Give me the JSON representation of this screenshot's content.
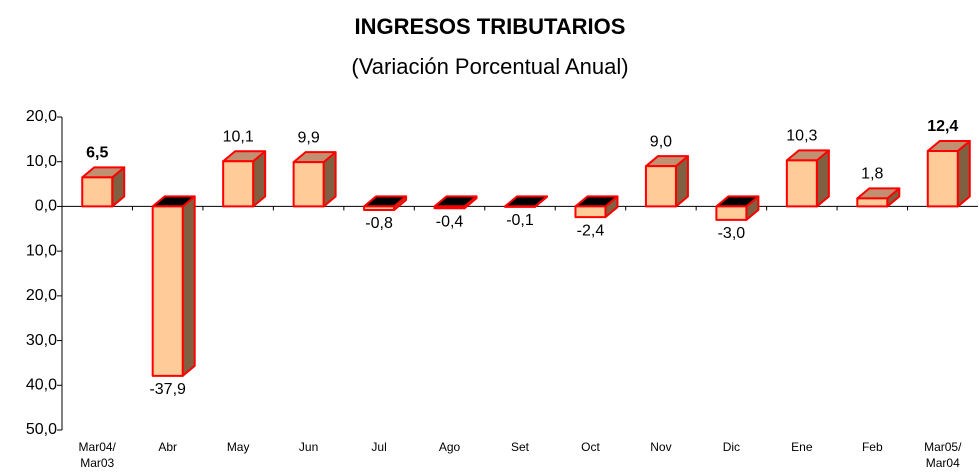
{
  "chart_data": {
    "type": "bar3d",
    "title": "INGRESOS TRIBUTARIOS",
    "subtitle": "(Variación Porcentual Anual)",
    "categories": [
      "Mar04/\nMar03",
      "Abr",
      "May",
      "Jun",
      "Jul",
      "Ago",
      "Set",
      "Oct",
      "Nov",
      "Dic",
      "Ene",
      "Feb",
      "Mar05/\nMar04"
    ],
    "values": [
      6.5,
      -37.9,
      10.1,
      9.9,
      -0.8,
      -0.4,
      -0.1,
      -2.4,
      9.0,
      -3.0,
      10.3,
      1.8,
      12.4
    ],
    "value_labels": [
      "6,5",
      "-37,9",
      "10,1",
      "9,9",
      "-0,8",
      "-0,4",
      "-0,1",
      "-2,4",
      "9,0",
      "-3,0",
      "10,3",
      "1,8",
      "12,4"
    ],
    "bold_value_labels": [
      0,
      12
    ],
    "color": "#ffcc99",
    "ylim": [
      -50,
      20
    ],
    "yticks": [
      {
        "value": 20,
        "label": "20,0"
      },
      {
        "value": 10,
        "label": "10,0"
      },
      {
        "value": 0,
        "label": "0,0"
      },
      {
        "value": -10,
        "label": "10,0"
      },
      {
        "value": -20,
        "label": "20,0"
      },
      {
        "value": -30,
        "label": "30,0"
      },
      {
        "value": -40,
        "label": "40,0"
      },
      {
        "value": -50,
        "label": "50,0"
      }
    ]
  }
}
